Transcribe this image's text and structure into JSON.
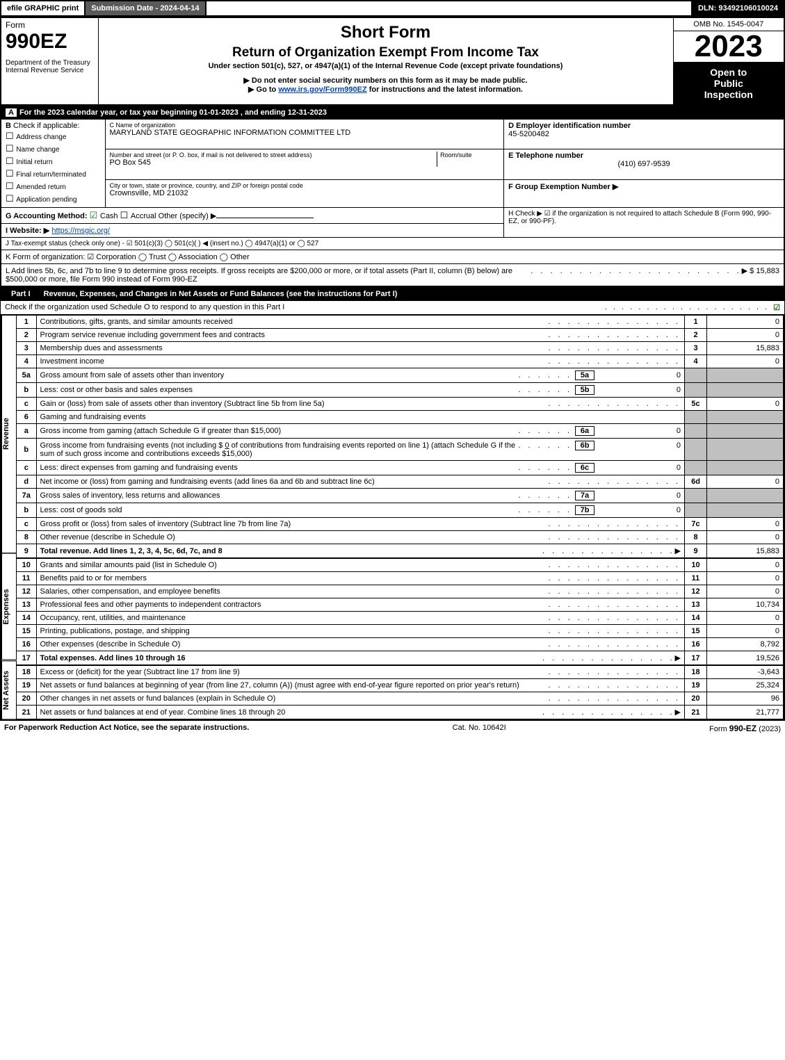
{
  "header": {
    "efile": "efile GRAPHIC print",
    "submission": "Submission Date - 2024-04-14",
    "dln": "DLN: 93492106010024"
  },
  "title": {
    "form_word": "Form",
    "form_no": "990EZ",
    "dept": "Department of the Treasury\nInternal Revenue Service",
    "short": "Short Form",
    "main": "Return of Organization Exempt From Income Tax",
    "sub": "Under section 501(c), 527, or 4947(a)(1) of the Internal Revenue Code (except private foundations)",
    "warn": "▶ Do not enter social security numbers on this form as it may be made public.",
    "goto_pre": "▶ Go to ",
    "goto_link": "www.irs.gov/Form990EZ",
    "goto_post": " for instructions and the latest information.",
    "omb": "OMB No. 1545-0047",
    "year": "2023",
    "open1": "Open to",
    "open2": "Public",
    "open3": "Inspection"
  },
  "A": "For the 2023 calendar year, or tax year beginning 01-01-2023 , and ending 12-31-2023",
  "B": {
    "hdr": "Check if applicable:",
    "opts": [
      "Address change",
      "Name change",
      "Initial return",
      "Final return/terminated",
      "Amended return",
      "Application pending"
    ]
  },
  "C": {
    "name_lbl": "C Name of organization",
    "name": "MARYLAND STATE GEOGRAPHIC INFORMATION COMMITTEE LTD",
    "addr_lbl": "Number and street (or P. O. box, if mail is not delivered to street address)",
    "addr": "PO Box 545",
    "room_lbl": "Room/suite",
    "city_lbl": "City or town, state or province, country, and ZIP or foreign postal code",
    "city": "Crownsville, MD  21032"
  },
  "D": {
    "lbl": "D Employer identification number",
    "val": "45-5200482"
  },
  "E": {
    "lbl": "E Telephone number",
    "val": "(410) 697-9539"
  },
  "F": {
    "lbl": "F Group Exemption Number ▶"
  },
  "G": {
    "lbl": "G Accounting Method:",
    "cash": "Cash",
    "accrual": "Accrual",
    "other": "Other (specify) ▶"
  },
  "H": {
    "txt": "H  Check ▶ ☑ if the organization is not required to attach Schedule B (Form 990, 990-EZ, or 990-PF)."
  },
  "I": {
    "lbl": "I Website: ▶",
    "val": "https://msgic.org/"
  },
  "J": {
    "txt": "J Tax-exempt status (check only one) - ☑ 501(c)(3)  ◯ 501(c)(  ) ◀ (insert no.)  ◯ 4947(a)(1) or  ◯ 527"
  },
  "K": {
    "txt": "K Form of organization:  ☑ Corporation  ◯ Trust  ◯ Association  ◯ Other"
  },
  "L": {
    "txt": "L Add lines 5b, 6c, and 7b to line 9 to determine gross receipts. If gross receipts are $200,000 or more, or if total assets (Part II, column (B) below) are $500,000 or more, file Form 990 instead of Form 990-EZ",
    "amt": "▶ $ 15,883"
  },
  "part1": {
    "hdr_pt": "Part I",
    "hdr": "Revenue, Expenses, and Changes in Net Assets or Fund Balances (see the instructions for Part I)",
    "sub": "Check if the organization used Schedule O to respond to any question in this Part I",
    "chk": "☑"
  },
  "sections": {
    "rev": "Revenue",
    "exp": "Expenses",
    "na": "Net Assets"
  },
  "lines": {
    "l1": {
      "n": "1",
      "d": "Contributions, gifts, grants, and similar amounts received",
      "c": "1",
      "a": "0"
    },
    "l2": {
      "n": "2",
      "d": "Program service revenue including government fees and contracts",
      "c": "2",
      "a": "0"
    },
    "l3": {
      "n": "3",
      "d": "Membership dues and assessments",
      "c": "3",
      "a": "15,883"
    },
    "l4": {
      "n": "4",
      "d": "Investment income",
      "c": "4",
      "a": "0"
    },
    "l5a": {
      "n": "5a",
      "d": "Gross amount from sale of assets other than inventory",
      "box": "5a",
      "bv": "0"
    },
    "l5b": {
      "n": "b",
      "d": "Less: cost or other basis and sales expenses",
      "box": "5b",
      "bv": "0"
    },
    "l5c": {
      "n": "c",
      "d": "Gain or (loss) from sale of assets other than inventory (Subtract line 5b from line 5a)",
      "c": "5c",
      "a": "0"
    },
    "l6": {
      "n": "6",
      "d": "Gaming and fundraising events"
    },
    "l6a": {
      "n": "a",
      "d": "Gross income from gaming (attach Schedule G if greater than $15,000)",
      "box": "6a",
      "bv": "0"
    },
    "l6b": {
      "n": "b",
      "d1": "Gross income from fundraising events (not including $",
      "d1v": "0",
      "d2": "of contributions from fundraising events reported on line 1) (attach Schedule G if the sum of such gross income and contributions exceeds $15,000)",
      "box": "6b",
      "bv": "0"
    },
    "l6c": {
      "n": "c",
      "d": "Less: direct expenses from gaming and fundraising events",
      "box": "6c",
      "bv": "0"
    },
    "l6d": {
      "n": "d",
      "d": "Net income or (loss) from gaming and fundraising events (add lines 6a and 6b and subtract line 6c)",
      "c": "6d",
      "a": "0"
    },
    "l7a": {
      "n": "7a",
      "d": "Gross sales of inventory, less returns and allowances",
      "box": "7a",
      "bv": "0"
    },
    "l7b": {
      "n": "b",
      "d": "Less: cost of goods sold",
      "box": "7b",
      "bv": "0"
    },
    "l7c": {
      "n": "c",
      "d": "Gross profit or (loss) from sales of inventory (Subtract line 7b from line 7a)",
      "c": "7c",
      "a": "0"
    },
    "l8": {
      "n": "8",
      "d": "Other revenue (describe in Schedule O)",
      "c": "8",
      "a": "0"
    },
    "l9": {
      "n": "9",
      "d": "Total revenue. Add lines 1, 2, 3, 4, 5c, 6d, 7c, and 8",
      "c": "9",
      "a": "15,883",
      "arrow": true,
      "bold": true
    },
    "l10": {
      "n": "10",
      "d": "Grants and similar amounts paid (list in Schedule O)",
      "c": "10",
      "a": "0"
    },
    "l11": {
      "n": "11",
      "d": "Benefits paid to or for members",
      "c": "11",
      "a": "0"
    },
    "l12": {
      "n": "12",
      "d": "Salaries, other compensation, and employee benefits",
      "c": "12",
      "a": "0"
    },
    "l13": {
      "n": "13",
      "d": "Professional fees and other payments to independent contractors",
      "c": "13",
      "a": "10,734"
    },
    "l14": {
      "n": "14",
      "d": "Occupancy, rent, utilities, and maintenance",
      "c": "14",
      "a": "0"
    },
    "l15": {
      "n": "15",
      "d": "Printing, publications, postage, and shipping",
      "c": "15",
      "a": "0"
    },
    "l16": {
      "n": "16",
      "d": "Other expenses (describe in Schedule O)",
      "c": "16",
      "a": "8,792"
    },
    "l17": {
      "n": "17",
      "d": "Total expenses. Add lines 10 through 16",
      "c": "17",
      "a": "19,526",
      "arrow": true,
      "bold": true
    },
    "l18": {
      "n": "18",
      "d": "Excess or (deficit) for the year (Subtract line 17 from line 9)",
      "c": "18",
      "a": "-3,643"
    },
    "l19": {
      "n": "19",
      "d": "Net assets or fund balances at beginning of year (from line 27, column (A)) (must agree with end-of-year figure reported on prior year's return)",
      "c": "19",
      "a": "25,324"
    },
    "l20": {
      "n": "20",
      "d": "Other changes in net assets or fund balances (explain in Schedule O)",
      "c": "20",
      "a": "96"
    },
    "l21": {
      "n": "21",
      "d": "Net assets or fund balances at end of year. Combine lines 18 through 20",
      "c": "21",
      "a": "21,777",
      "arrow": true
    }
  },
  "footer": {
    "left": "For Paperwork Reduction Act Notice, see the separate instructions.",
    "mid": "Cat. No. 10642I",
    "right_pre": "Form ",
    "right_b": "990-EZ",
    "right_post": " (2023)"
  }
}
